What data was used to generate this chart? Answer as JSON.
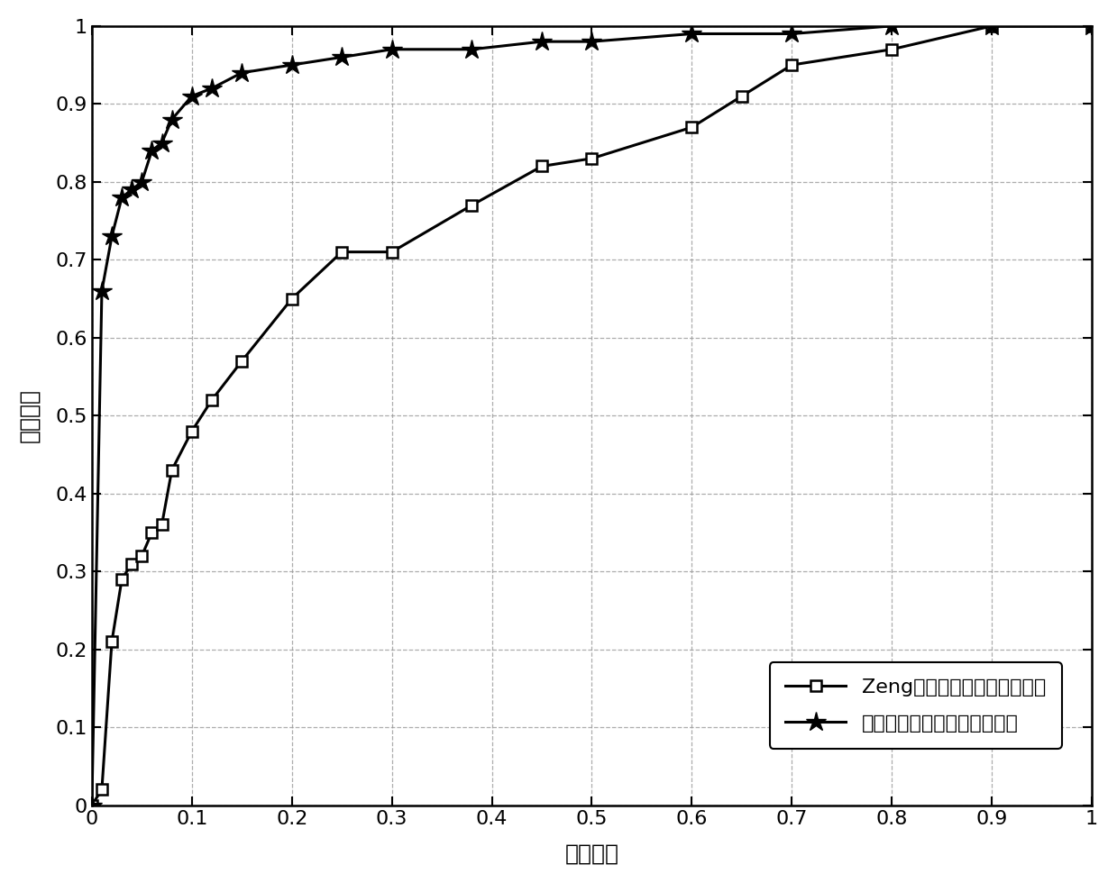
{
  "title": "",
  "xlabel": "虚警概率",
  "ylabel": "检测概率",
  "xlim": [
    0,
    1
  ],
  "ylim": [
    0,
    1
  ],
  "xticks": [
    0,
    0.1,
    0.2,
    0.3,
    0.4,
    0.5,
    0.6,
    0.7,
    0.8,
    0.9,
    1.0
  ],
  "yticks": [
    0,
    0.1,
    0.2,
    0.3,
    0.4,
    0.5,
    0.6,
    0.7,
    0.8,
    0.9,
    1.0
  ],
  "line1_label": "Zeng等人提出的频谱感知方法",
  "line2_label": "本发明所提出的频谱感知方法",
  "line1_x": [
    0.0,
    0.01,
    0.02,
    0.03,
    0.04,
    0.05,
    0.06,
    0.07,
    0.08,
    0.1,
    0.12,
    0.15,
    0.2,
    0.25,
    0.3,
    0.38,
    0.45,
    0.5,
    0.6,
    0.65,
    0.7,
    0.8,
    0.9,
    1.0
  ],
  "line1_y": [
    0.0,
    0.02,
    0.21,
    0.29,
    0.31,
    0.32,
    0.35,
    0.36,
    0.43,
    0.48,
    0.52,
    0.57,
    0.65,
    0.71,
    0.71,
    0.77,
    0.82,
    0.83,
    0.87,
    0.91,
    0.95,
    0.97,
    1.0,
    1.0
  ],
  "line2_x": [
    0.0,
    0.01,
    0.02,
    0.03,
    0.04,
    0.05,
    0.06,
    0.07,
    0.08,
    0.1,
    0.12,
    0.15,
    0.2,
    0.25,
    0.3,
    0.38,
    0.45,
    0.5,
    0.6,
    0.7,
    0.8,
    0.9,
    1.0
  ],
  "line2_y": [
    0.0,
    0.66,
    0.73,
    0.78,
    0.79,
    0.8,
    0.84,
    0.85,
    0.88,
    0.91,
    0.92,
    0.94,
    0.95,
    0.96,
    0.97,
    0.97,
    0.98,
    0.98,
    0.99,
    0.99,
    1.0,
    1.0,
    1.0
  ],
  "background_color": "#ffffff",
  "line_color": "#000000",
  "grid_color": "#999999"
}
